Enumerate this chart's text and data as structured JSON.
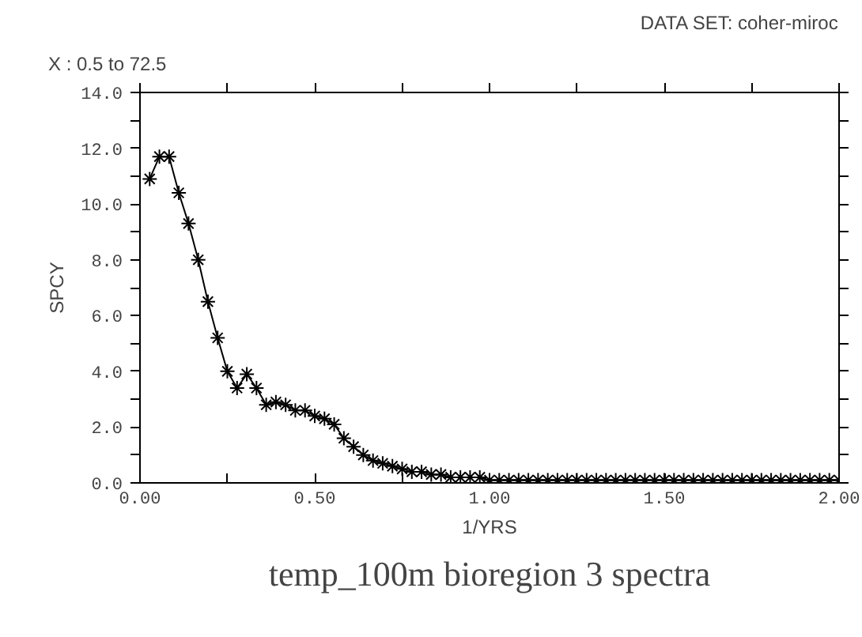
{
  "chart_data": {
    "type": "line",
    "xlabel": "1/YRS",
    "ylabel": "SPCY",
    "title": "temp_100m bioregion 3 spectra",
    "annotations": [
      "X : 0.5 to 72.5",
      "DATA SET: coher-miroc"
    ],
    "x": [
      0.0278,
      0.0556,
      0.0833,
      0.1111,
      0.1389,
      0.1667,
      0.1944,
      0.2222,
      0.25,
      0.2778,
      0.3056,
      0.3333,
      0.3611,
      0.3889,
      0.4167,
      0.4444,
      0.4722,
      0.5,
      0.5278,
      0.5556,
      0.5833,
      0.6111,
      0.6389,
      0.6667,
      0.6944,
      0.7222,
      0.75,
      0.7778,
      0.8056,
      0.8333,
      0.8611,
      0.8889,
      0.9167,
      0.9444,
      0.9722,
      1.0,
      1.0278,
      1.0556,
      1.0833,
      1.1111,
      1.1389,
      1.1667,
      1.1944,
      1.2222,
      1.25,
      1.2778,
      1.3056,
      1.3333,
      1.3611,
      1.3889,
      1.4167,
      1.4444,
      1.4722,
      1.5,
      1.5278,
      1.5556,
      1.5833,
      1.6111,
      1.6389,
      1.6667,
      1.6944,
      1.7222,
      1.75,
      1.7778,
      1.8056,
      1.8333,
      1.8611,
      1.8889,
      1.9167,
      1.9444,
      1.9722,
      2.0
    ],
    "series": [
      {
        "color": "#000000",
        "values": [
          10.9,
          11.7,
          11.7,
          10.4,
          9.3,
          8.0,
          6.5,
          5.2,
          4.0,
          3.4,
          3.9,
          3.4,
          2.8,
          2.9,
          2.8,
          2.6,
          2.6,
          2.4,
          2.3,
          2.1,
          1.6,
          1.3,
          1.0,
          0.8,
          0.7,
          0.6,
          0.5,
          0.4,
          0.4,
          0.3,
          0.3,
          0.2,
          0.2,
          0.2,
          0.2,
          0.1,
          0.1,
          0.1,
          0.1,
          0.1,
          0.1,
          0.1,
          0.1,
          0.1,
          0.1,
          0.1,
          0.1,
          0.1,
          0.1,
          0.1,
          0.1,
          0.1,
          0.1,
          0.1,
          0.1,
          0.1,
          0.1,
          0.1,
          0.1,
          0.1,
          0.1,
          0.1,
          0.1,
          0.1,
          0.1,
          0.1,
          0.1,
          0.1,
          0.1,
          0.1,
          0.1,
          0.1
        ]
      }
    ],
    "marker": "cross",
    "line_style": "solid",
    "grid": false,
    "xlim": [
      0,
      2.0
    ],
    "ylim": [
      0,
      14.0
    ],
    "xticks": [
      {
        "value": 0,
        "label": "0.00"
      },
      {
        "value": 0.25,
        "label": null
      },
      {
        "value": 0.5,
        "label": "0.50"
      },
      {
        "value": 0.75,
        "label": null
      },
      {
        "value": 1.0,
        "label": "1.00"
      },
      {
        "value": 1.25,
        "label": null
      },
      {
        "value": 1.5,
        "label": "1.50"
      },
      {
        "value": 1.75,
        "label": null
      },
      {
        "value": 2.0,
        "label": "2.00"
      }
    ],
    "yticks": [
      {
        "value": 0,
        "label": "0.0"
      },
      {
        "value": 1,
        "label": null
      },
      {
        "value": 2,
        "label": "2.0"
      },
      {
        "value": 3,
        "label": null
      },
      {
        "value": 4,
        "label": "4.0"
      },
      {
        "value": 5,
        "label": null
      },
      {
        "value": 6,
        "label": "6.0"
      },
      {
        "value": 7,
        "label": null
      },
      {
        "value": 8,
        "label": "8.0"
      },
      {
        "value": 9,
        "label": null
      },
      {
        "value": 10,
        "label": "10.0"
      },
      {
        "value": 11,
        "label": null
      },
      {
        "value": 12,
        "label": "12.0"
      },
      {
        "value": 13,
        "label": null
      },
      {
        "value": 14,
        "label": "14.0"
      }
    ]
  }
}
